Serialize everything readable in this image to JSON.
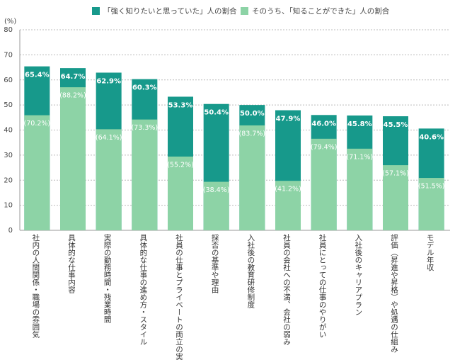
{
  "chart_data": {
    "type": "bar",
    "ylabel": "(%)",
    "categories": [
      "社内の人間関係・職場の雰囲気",
      "具体的な仕事内容",
      "実際の勤務時間・残業時間",
      "具体的な仕事の進め方・スタイル",
      "社員の仕事とプライベートの両立の実態",
      "採否の基準や理由",
      "入社後の教育研修制度",
      "社員の会社への不満、会社の弱み",
      "社員にとっての仕事のやりがい",
      "入社後のキャリアプラン",
      "評価（昇進や昇格）や処遇の仕組み",
      "モデル年収"
    ],
    "series": [
      {
        "name": "「強く知りたいと思っていた」人の割合",
        "color": "#17998b",
        "values": [
          65.4,
          64.7,
          62.9,
          60.3,
          53.3,
          50.4,
          50.0,
          47.9,
          46.0,
          45.8,
          45.5,
          40.6
        ],
        "value_labels": [
          "65.4%",
          "64.7%",
          "62.9%",
          "60.3%",
          "53.3%",
          "50.4%",
          "50.0%",
          "47.9%",
          "46.0%",
          "45.8%",
          "45.5%",
          "40.6%"
        ]
      },
      {
        "name": "そのうち、「知ることができた」人の割合",
        "color": "#8dd3a6",
        "values": [
          70.2,
          88.2,
          64.1,
          73.3,
          55.2,
          38.4,
          83.7,
          41.2,
          79.4,
          71.1,
          57.1,
          51.5
        ],
        "value_labels": [
          "(70.2%)",
          "(88.2%)",
          "(64.1%)",
          "(73.3%)",
          "(55.2%)",
          "(38.4%)",
          "(83.7%)",
          "(41.2%)",
          "(79.4%)",
          "(71.1%)",
          "(57.1%)",
          "(51.5%)"
        ]
      }
    ],
    "ylim": [
      0,
      80
    ],
    "yticks": [
      0,
      10,
      20,
      30,
      40,
      50,
      60,
      70,
      80
    ],
    "grid": true,
    "legend": "top"
  }
}
